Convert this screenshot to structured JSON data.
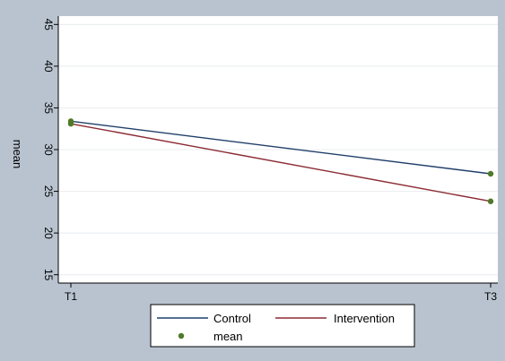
{
  "chart_data": {
    "type": "line",
    "title": "",
    "xlabel": "",
    "ylabel": "mean",
    "x": [
      "T1",
      "T3"
    ],
    "ylim": [
      14,
      46
    ],
    "yticks": [
      15,
      20,
      25,
      30,
      35,
      40,
      45
    ],
    "grid": true,
    "series": [
      {
        "name": "Control",
        "values": [
          33.4,
          27.1
        ],
        "color": "#1f3f6b"
      },
      {
        "name": "Intervention",
        "values": [
          33.1,
          23.8
        ],
        "color": "#8b2a33"
      }
    ],
    "markers": {
      "name": "mean",
      "color": "#4f7a28"
    },
    "legend_position": "bottom",
    "colors": {
      "frame": "#b9c3d0",
      "grid": "#e8ecef",
      "plot_bg": "#ffffff"
    }
  }
}
